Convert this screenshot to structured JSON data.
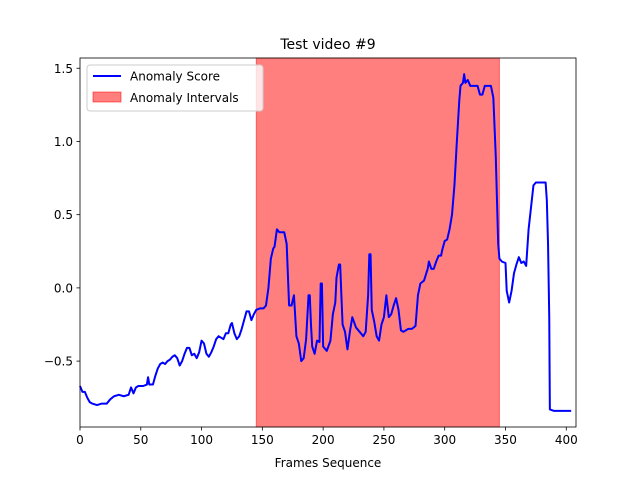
{
  "chart_data": {
    "type": "line",
    "title": "Test video #9",
    "xlabel": "Frames Sequence",
    "ylabel": "",
    "xlim": [
      0,
      408
    ],
    "ylim": [
      -0.95,
      1.57
    ],
    "x_ticks": [
      0,
      50,
      100,
      150,
      200,
      250,
      300,
      350,
      400
    ],
    "y_ticks": [
      -0.5,
      0.0,
      0.5,
      1.0,
      1.5
    ],
    "x_tick_labels": [
      "0",
      "50",
      "100",
      "150",
      "200",
      "250",
      "300",
      "350",
      "400"
    ],
    "y_tick_labels": [
      "−0.5",
      "0.0",
      "0.5",
      "1.0",
      "1.5"
    ],
    "grid": false,
    "legend_position": "top-left",
    "series": [
      {
        "name": "Anomaly Score",
        "color": "#0000ff",
        "points": [
          [
            0,
            -0.67
          ],
          [
            2,
            -0.71
          ],
          [
            4,
            -0.71
          ],
          [
            6,
            -0.75
          ],
          [
            8,
            -0.78
          ],
          [
            10,
            -0.79
          ],
          [
            14,
            -0.8
          ],
          [
            18,
            -0.79
          ],
          [
            22,
            -0.79
          ],
          [
            25,
            -0.76
          ],
          [
            28,
            -0.74
          ],
          [
            32,
            -0.73
          ],
          [
            36,
            -0.74
          ],
          [
            40,
            -0.73
          ],
          [
            42,
            -0.68
          ],
          [
            44,
            -0.72
          ],
          [
            46,
            -0.68
          ],
          [
            48,
            -0.67
          ],
          [
            52,
            -0.67
          ],
          [
            55,
            -0.66
          ],
          [
            56,
            -0.61
          ],
          [
            57,
            -0.66
          ],
          [
            60,
            -0.66
          ],
          [
            62,
            -0.6
          ],
          [
            64,
            -0.55
          ],
          [
            66,
            -0.52
          ],
          [
            68,
            -0.51
          ],
          [
            70,
            -0.52
          ],
          [
            72,
            -0.5
          ],
          [
            74,
            -0.49
          ],
          [
            76,
            -0.47
          ],
          [
            78,
            -0.46
          ],
          [
            80,
            -0.48
          ],
          [
            82,
            -0.53
          ],
          [
            84,
            -0.5
          ],
          [
            86,
            -0.45
          ],
          [
            88,
            -0.41
          ],
          [
            90,
            -0.41
          ],
          [
            92,
            -0.46
          ],
          [
            94,
            -0.45
          ],
          [
            96,
            -0.48
          ],
          [
            98,
            -0.44
          ],
          [
            100,
            -0.36
          ],
          [
            102,
            -0.38
          ],
          [
            104,
            -0.45
          ],
          [
            106,
            -0.47
          ],
          [
            108,
            -0.44
          ],
          [
            110,
            -0.4
          ],
          [
            112,
            -0.35
          ],
          [
            114,
            -0.33
          ],
          [
            116,
            -0.34
          ],
          [
            118,
            -0.35
          ],
          [
            120,
            -0.31
          ],
          [
            122,
            -0.31
          ],
          [
            124,
            -0.25
          ],
          [
            125,
            -0.24
          ],
          [
            127,
            -0.31
          ],
          [
            129,
            -0.35
          ],
          [
            131,
            -0.33
          ],
          [
            133,
            -0.28
          ],
          [
            135,
            -0.22
          ],
          [
            137,
            -0.16
          ],
          [
            139,
            -0.16
          ],
          [
            141,
            -0.22
          ],
          [
            143,
            -0.18
          ],
          [
            145,
            -0.15
          ],
          [
            148,
            -0.14
          ],
          [
            151,
            -0.14
          ],
          [
            153,
            -0.12
          ],
          [
            155,
            0.0
          ],
          [
            157,
            0.2
          ],
          [
            159,
            0.27
          ],
          [
            160,
            0.28
          ],
          [
            162,
            0.4
          ],
          [
            164,
            0.38
          ],
          [
            168,
            0.38
          ],
          [
            170,
            0.3
          ],
          [
            172,
            -0.12
          ],
          [
            174,
            -0.12
          ],
          [
            176,
            -0.05
          ],
          [
            178,
            -0.33
          ],
          [
            180,
            -0.38
          ],
          [
            182,
            -0.5
          ],
          [
            184,
            -0.48
          ],
          [
            186,
            -0.35
          ],
          [
            188,
            -0.05
          ],
          [
            189,
            -0.05
          ],
          [
            190,
            -0.25
          ],
          [
            191,
            -0.4
          ],
          [
            193,
            -0.45
          ],
          [
            195,
            -0.36
          ],
          [
            197,
            -0.37
          ],
          [
            198,
            0.03
          ],
          [
            199,
            0.03
          ],
          [
            200,
            -0.4
          ],
          [
            203,
            -0.43
          ],
          [
            206,
            -0.36
          ],
          [
            208,
            -0.18
          ],
          [
            210,
            -0.1
          ],
          [
            211,
            0.07
          ],
          [
            213,
            0.16
          ],
          [
            214,
            0.16
          ],
          [
            215,
            -0.05
          ],
          [
            216,
            -0.25
          ],
          [
            218,
            -0.3
          ],
          [
            220,
            -0.42
          ],
          [
            222,
            -0.3
          ],
          [
            224,
            -0.2
          ],
          [
            227,
            -0.27
          ],
          [
            230,
            -0.3
          ],
          [
            233,
            -0.33
          ],
          [
            235,
            -0.3
          ],
          [
            237,
            -0.05
          ],
          [
            238,
            0.23
          ],
          [
            239,
            0.23
          ],
          [
            240,
            -0.15
          ],
          [
            242,
            -0.23
          ],
          [
            244,
            -0.33
          ],
          [
            246,
            -0.36
          ],
          [
            248,
            -0.25
          ],
          [
            250,
            -0.2
          ],
          [
            252,
            -0.05
          ],
          [
            254,
            -0.2
          ],
          [
            256,
            -0.18
          ],
          [
            258,
            -0.12
          ],
          [
            260,
            -0.07
          ],
          [
            262,
            -0.15
          ],
          [
            264,
            -0.29
          ],
          [
            266,
            -0.3
          ],
          [
            270,
            -0.28
          ],
          [
            273,
            -0.28
          ],
          [
            276,
            -0.26
          ],
          [
            278,
            -0.05
          ],
          [
            280,
            0.03
          ],
          [
            283,
            0.05
          ],
          [
            286,
            0.13
          ],
          [
            287,
            0.18
          ],
          [
            289,
            0.13
          ],
          [
            291,
            0.13
          ],
          [
            293,
            0.18
          ],
          [
            295,
            0.22
          ],
          [
            297,
            0.22
          ],
          [
            298,
            0.26
          ],
          [
            300,
            0.32
          ],
          [
            302,
            0.33
          ],
          [
            304,
            0.4
          ],
          [
            306,
            0.5
          ],
          [
            308,
            0.7
          ],
          [
            310,
            1.0
          ],
          [
            312,
            1.28
          ],
          [
            313,
            1.38
          ],
          [
            315,
            1.4
          ],
          [
            316,
            1.46
          ],
          [
            317,
            1.4
          ],
          [
            319,
            1.42
          ],
          [
            321,
            1.38
          ],
          [
            325,
            1.38
          ],
          [
            327,
            1.38
          ],
          [
            329,
            1.32
          ],
          [
            331,
            1.32
          ],
          [
            333,
            1.38
          ],
          [
            336,
            1.38
          ],
          [
            338,
            1.38
          ],
          [
            340,
            1.3
          ],
          [
            342,
            0.9
          ],
          [
            344,
            0.3
          ],
          [
            345,
            0.2
          ],
          [
            347,
            0.18
          ],
          [
            350,
            0.17
          ],
          [
            351,
            -0.02
          ],
          [
            353,
            -0.1
          ],
          [
            355,
            -0.02
          ],
          [
            357,
            0.1
          ],
          [
            359,
            0.16
          ],
          [
            361,
            0.21
          ],
          [
            363,
            0.17
          ],
          [
            365,
            0.18
          ],
          [
            367,
            0.15
          ],
          [
            369,
            0.4
          ],
          [
            371,
            0.55
          ],
          [
            373,
            0.7
          ],
          [
            375,
            0.72
          ],
          [
            380,
            0.72
          ],
          [
            383,
            0.72
          ],
          [
            384,
            0.6
          ],
          [
            385,
            0.3
          ],
          [
            386,
            -0.2
          ],
          [
            386.5,
            -0.83
          ],
          [
            390,
            -0.84
          ],
          [
            395,
            -0.84
          ],
          [
            404,
            -0.84
          ]
        ]
      }
    ],
    "intervals": [
      {
        "name": "Anomaly Intervals",
        "start": 145,
        "end": 345,
        "color": "#ff0000",
        "alpha": 0.5
      }
    ]
  }
}
